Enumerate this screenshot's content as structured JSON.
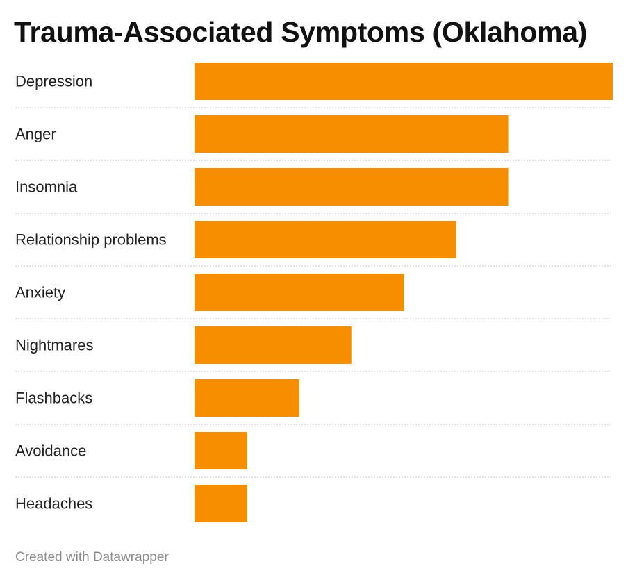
{
  "chart_data": {
    "type": "bar",
    "orientation": "horizontal",
    "title": "Trauma-Associated Symptoms (Oklahoma)",
    "categories": [
      "Depression",
      "Anger",
      "Insomnia",
      "Relationship problems",
      "Anxiety",
      "Nightmares",
      "Flashbacks",
      "Avoidance",
      "Headaches"
    ],
    "values": [
      8,
      6,
      6,
      5,
      4,
      3,
      2,
      1,
      1
    ],
    "xlim": [
      0,
      8
    ],
    "grid": false,
    "bar_color": "#f78e00"
  },
  "credit": "Created with Datawrapper"
}
